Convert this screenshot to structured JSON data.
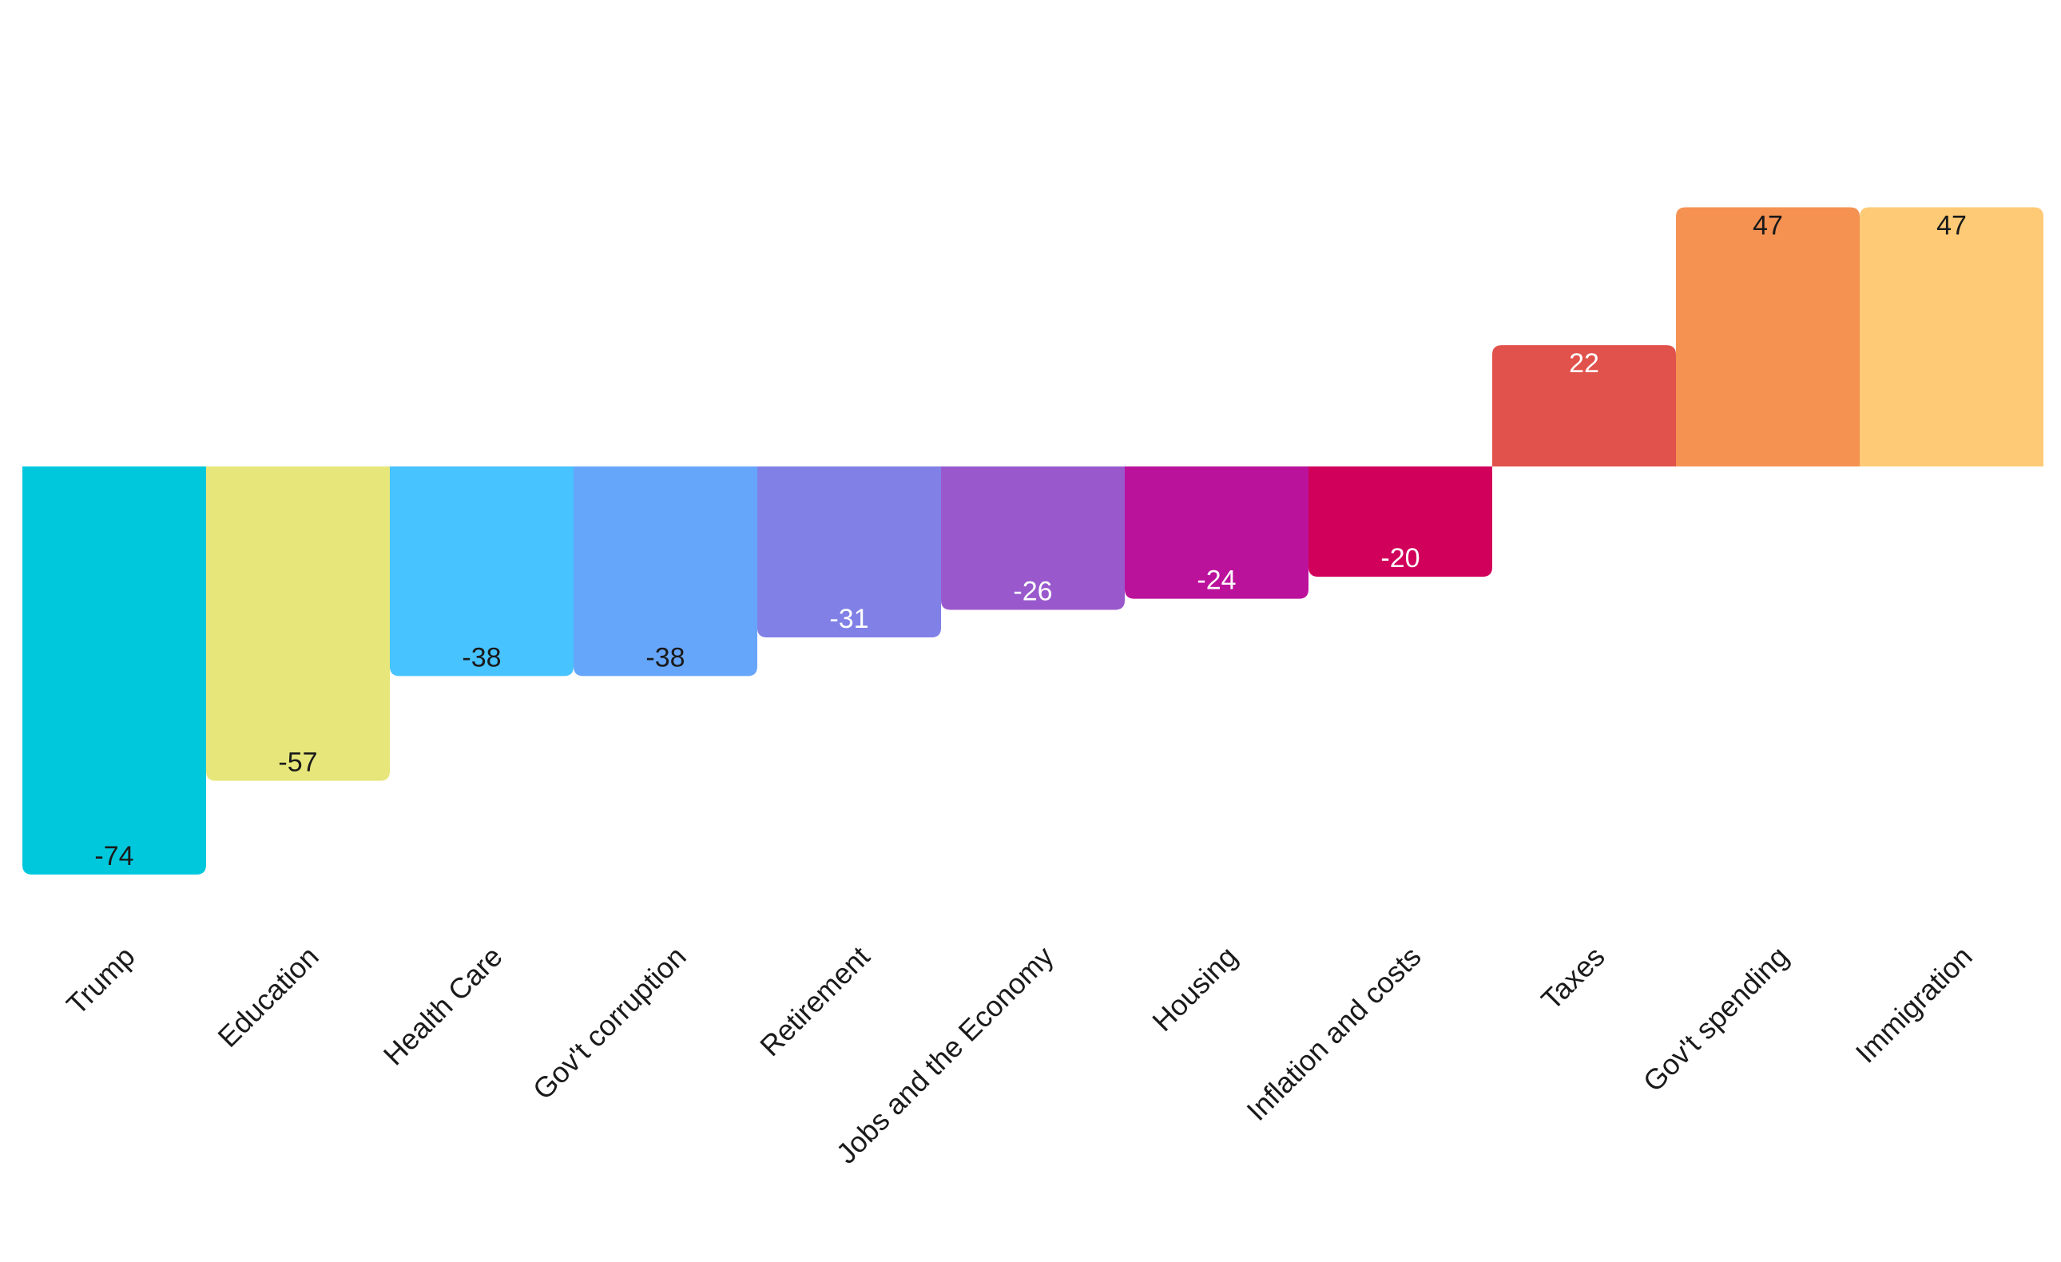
{
  "chart_data": {
    "type": "bar",
    "title": "",
    "xlabel": "",
    "ylabel": "",
    "ylim": [
      -80,
      80
    ],
    "grid": false,
    "legend": "none",
    "categories": [
      "Trump",
      "Education",
      "Health Care",
      "Gov't corruption",
      "Retirement",
      "Jobs and the Economy",
      "Housing",
      "Inflation and costs",
      "Taxes",
      "Gov't spending",
      "Immigration"
    ],
    "values": [
      -74,
      -57,
      -38,
      -38,
      -31,
      -26,
      -24,
      -20,
      22,
      47,
      47
    ],
    "value_labels": [
      "-74",
      "-57",
      "-38",
      "-38",
      "-31",
      "-26",
      "-24",
      "-20",
      "22",
      "47",
      "47"
    ],
    "colors": [
      "#00c8dc",
      "#e6e67a",
      "#47c3ff",
      "#66a6fa",
      "#8080e6",
      "#9959cc",
      "#bb129c",
      "#d1005b",
      "#e0524b",
      "#f59252",
      "#ffca75"
    ],
    "label_colors": [
      "#1a1a1a",
      "#1a1a1a",
      "#1a1a1a",
      "#1a1a1a",
      "#ffffff",
      "#ffffff",
      "#ffffff",
      "#ffffff",
      "#ffffff",
      "#1a1a1a",
      "#1a1a1a"
    ]
  }
}
